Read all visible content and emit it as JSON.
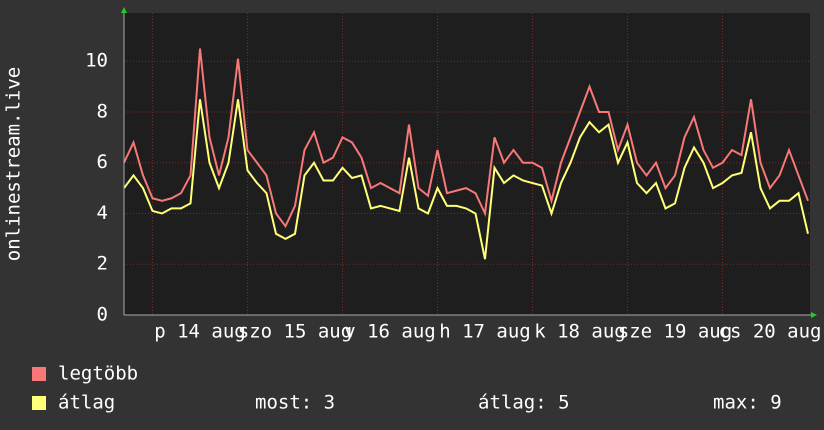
{
  "chart_data": {
    "type": "line",
    "y_label": "onlinestream.live",
    "categories": [
      null,
      null,
      null,
      null,
      null,
      null,
      null,
      null,
      "p 14 aug",
      null,
      null,
      null,
      null,
      null,
      null,
      null,
      null,
      null,
      "szo 15 aug",
      null,
      null,
      null,
      null,
      null,
      null,
      null,
      null,
      null,
      "v 16 aug",
      null,
      null,
      null,
      null,
      null,
      null,
      null,
      null,
      null,
      "h 17 aug",
      null,
      null,
      null,
      null,
      null,
      null,
      null,
      null,
      null,
      "k 18 aug",
      null,
      null,
      null,
      null,
      null,
      null,
      null,
      null,
      null,
      "sze 19 aug",
      null,
      null,
      null,
      null,
      null,
      null,
      null,
      null,
      null,
      "cs 20 aug",
      null,
      null,
      null,
      null
    ],
    "series": [
      {
        "name": "legtöbb",
        "color": "#f87878",
        "values": [
          6,
          6.8,
          5.5,
          4.6,
          4.5,
          4.6,
          4.8,
          5.5,
          10.5,
          7,
          5.5,
          7,
          10.1,
          6.5,
          6,
          5.5,
          4,
          3.5,
          4.3,
          6.5,
          7.2,
          6,
          6.2,
          7,
          6.8,
          6.2,
          5,
          5.2,
          5,
          4.8,
          7.5,
          5,
          4.7,
          6.5,
          4.8,
          4.9,
          5,
          4.8,
          4,
          7,
          6,
          6.5,
          6,
          6,
          5.8,
          4.5,
          6,
          7,
          8,
          9,
          8,
          8,
          6.5,
          7.5,
          6,
          5.5,
          6,
          5,
          5.5,
          7,
          7.8,
          6.5,
          5.8,
          6,
          6.5,
          6.3,
          8.5,
          6,
          5,
          5.5,
          6.5,
          5.5,
          4.5
        ]
      },
      {
        "name": "átlag",
        "color": "#ffff78",
        "values": [
          5,
          5.5,
          5,
          4.1,
          4,
          4.2,
          4.2,
          4.4,
          8.5,
          6,
          5,
          6,
          8.5,
          5.7,
          5.2,
          4.8,
          3.2,
          3,
          3.2,
          5.5,
          6,
          5.3,
          5.3,
          5.8,
          5.4,
          5.5,
          4.2,
          4.3,
          4.2,
          4.1,
          6.2,
          4.2,
          4,
          5,
          4.3,
          4.3,
          4.2,
          4,
          2.2,
          5.8,
          5.2,
          5.5,
          5.3,
          5.2,
          5.1,
          4,
          5.2,
          6,
          7,
          7.6,
          7.2,
          7.5,
          6,
          6.8,
          5.2,
          4.8,
          5.2,
          4.2,
          4.4,
          5.8,
          6.6,
          6,
          5,
          5.2,
          5.5,
          5.6,
          7.2,
          5,
          4.2,
          4.5,
          4.5,
          4.8,
          3.2
        ]
      }
    ],
    "ylim": [
      0,
      11.9
    ],
    "yticks": [
      0,
      2,
      4,
      6,
      8,
      10
    ],
    "grid": true,
    "stats": [
      "most: 3",
      "átlag: 5",
      "max: 9"
    ]
  }
}
